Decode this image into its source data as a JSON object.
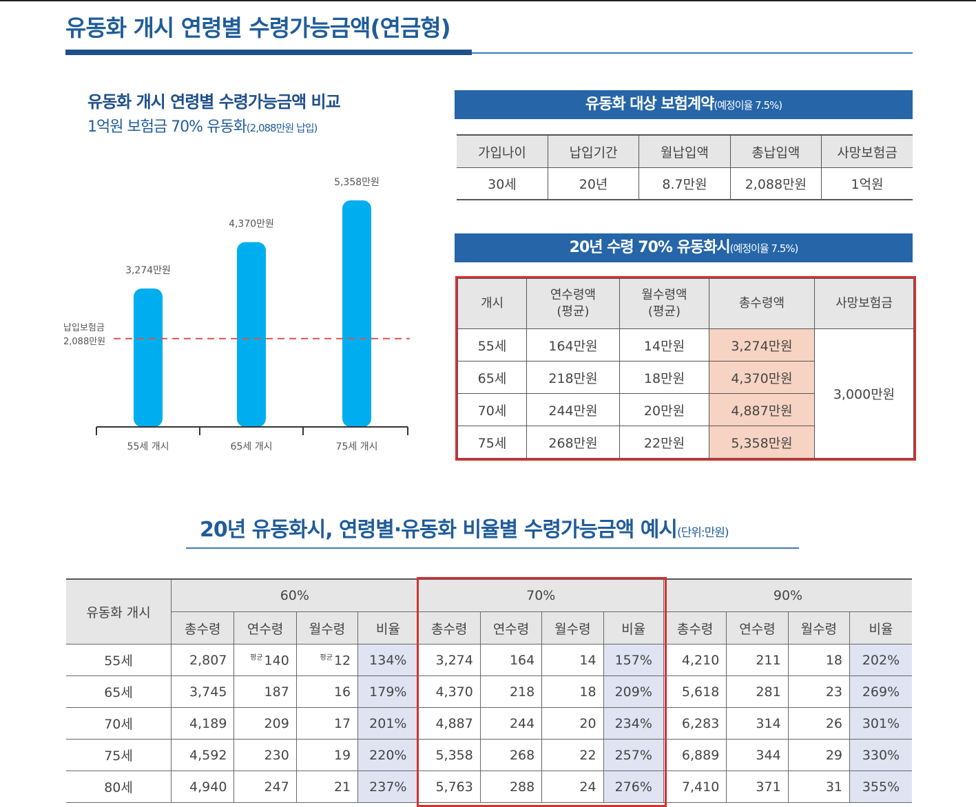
{
  "title": "유동화 개시 연령별 수령가능금액(연금형)",
  "chart": {
    "title": "유동화 개시 연령별 수령가능금액 비교",
    "subtitle_main": "1억원 보험금 70% 유동화",
    "subtitle_small": "(2,088만원 납입)",
    "reference_label_1": "납입보험금",
    "reference_label_2": "2,088만원"
  },
  "chart_data": {
    "type": "bar",
    "categories": [
      "55세 개시",
      "65세 개시",
      "75세 개시"
    ],
    "values": [
      3274,
      4370,
      5358
    ],
    "value_labels": [
      "3,274만원",
      "4,370만원",
      "5,358만원"
    ],
    "reference_line": 2088,
    "ylim": [
      0,
      5700
    ],
    "colors": {
      "bar": "#00aeef",
      "reference": "#d9534f"
    }
  },
  "contract": {
    "banner_main": "유동화 대상 보험계약",
    "banner_small": "(예정이율 7.5%)",
    "headers": [
      "가입나이",
      "납입기간",
      "월납입액",
      "총납입액",
      "사망보험금"
    ],
    "row": [
      "30세",
      "20년",
      "8.7만원",
      "2,088만원",
      "1억원"
    ]
  },
  "payout": {
    "banner_main": "20년 수령 70% 유동화시",
    "banner_small": "(예정이율 7.5%)",
    "headers": [
      "개시",
      "연수령액",
      "(평균)",
      "월수령액",
      "(평균)",
      "총수령액",
      "사망보험금"
    ],
    "rows": [
      [
        "55세",
        "164만원",
        "14만원",
        "3,274만원"
      ],
      [
        "65세",
        "218만원",
        "18만원",
        "4,370만원"
      ],
      [
        "70세",
        "244만원",
        "20만원",
        "4,887만원"
      ],
      [
        "75세",
        "268만원",
        "22만원",
        "5,358만원"
      ]
    ],
    "death_benefit": "3,000만원"
  },
  "examples": {
    "title_main": "20년 유동화시, 연령별·유동화 비율별 수령가능금액 예시",
    "title_small": "(단위:만원)",
    "corner": "유동화 개시",
    "groups": [
      "60%",
      "70%",
      "90%"
    ],
    "sub": [
      "총수령",
      "연수령",
      "월수령",
      "비율"
    ],
    "avg_mark": "평균",
    "rows": [
      [
        "55세",
        "2,807",
        "140",
        "12",
        "134%",
        "3,274",
        "164",
        "14",
        "157%",
        "4,210",
        "211",
        "18",
        "202%"
      ],
      [
        "65세",
        "3,745",
        "187",
        "16",
        "179%",
        "4,370",
        "218",
        "18",
        "209%",
        "5,618",
        "281",
        "23",
        "269%"
      ],
      [
        "70세",
        "4,189",
        "209",
        "17",
        "201%",
        "4,887",
        "244",
        "20",
        "234%",
        "6,283",
        "314",
        "26",
        "301%"
      ],
      [
        "75세",
        "4,592",
        "230",
        "19",
        "220%",
        "5,358",
        "268",
        "22",
        "257%",
        "6,889",
        "344",
        "29",
        "330%"
      ],
      [
        "80세",
        "4,940",
        "247",
        "21",
        "237%",
        "5,763",
        "288",
        "24",
        "276%",
        "7,410",
        "371",
        "31",
        "355%"
      ]
    ]
  }
}
